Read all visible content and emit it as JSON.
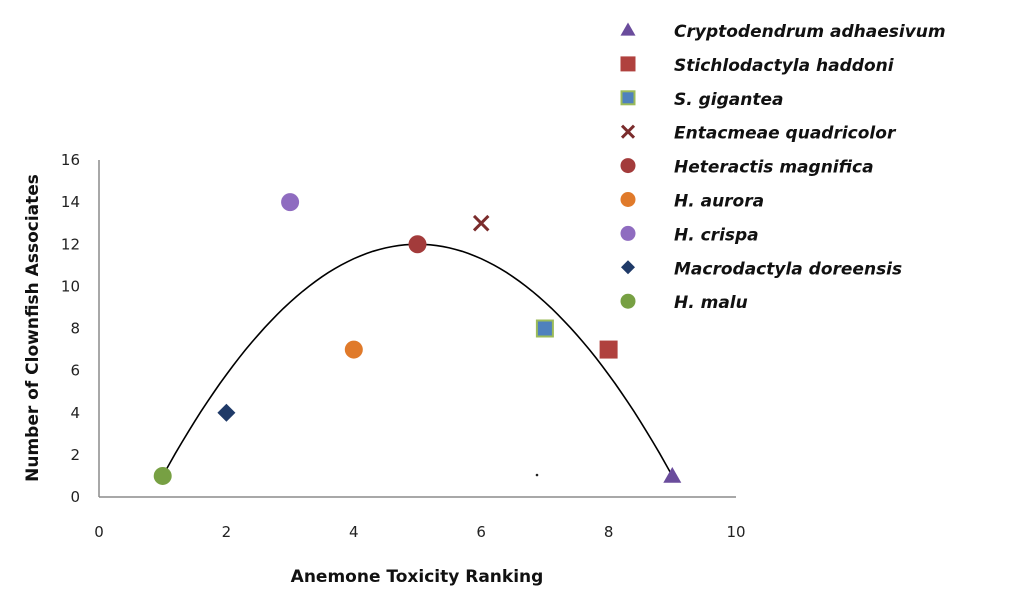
{
  "chart_data": {
    "type": "scatter",
    "title": "",
    "xlabel": "Anemone Toxicity Ranking",
    "ylabel": "Number of Clownfish Associates",
    "xlim": [
      0,
      10
    ],
    "ylim": [
      0,
      16
    ],
    "xticks": [
      "0",
      "2",
      "4",
      "6",
      "8",
      "10"
    ],
    "yticks": [
      "0",
      "2",
      "4",
      "6",
      "8",
      "10",
      "12",
      "14",
      "16"
    ],
    "grid": false,
    "legend_position": "top-right",
    "series": [
      {
        "name": "Cryptodendrum adhaesivum",
        "marker": "triangle",
        "color": "#6A4C9C",
        "x": 9,
        "y": 1
      },
      {
        "name": "Stichlodactyla haddoni",
        "marker": "square",
        "color": "#B0413E",
        "x": 8,
        "y": 7
      },
      {
        "name": "S. gigantea",
        "marker": "square-outlined",
        "color": "#4F81BD",
        "edge_color": "#9BBB59",
        "x": 7,
        "y": 8
      },
      {
        "name": "Entacmeae quadricolor",
        "marker": "x",
        "color": "#7B2C2C",
        "x": 6,
        "y": 13
      },
      {
        "name": "Heteractis magnifica",
        "marker": "circle",
        "color": "#A33B3B",
        "x": 5,
        "y": 12
      },
      {
        "name": "H. aurora",
        "marker": "circle",
        "color": "#E07A2A",
        "x": 4,
        "y": 7
      },
      {
        "name": "H. crispa",
        "marker": "circle",
        "color": "#8F6CC0",
        "x": 3,
        "y": 14
      },
      {
        "name": "Macrodactyla doreensis",
        "marker": "diamond",
        "color": "#1F3A68",
        "x": 2,
        "y": 4
      },
      {
        "name": "H. malu",
        "marker": "circle",
        "color": "#77A043",
        "x": 1,
        "y": 1
      }
    ],
    "trendline": {
      "type": "polynomial",
      "order": 2,
      "color": "#000000",
      "x_range": [
        1,
        9
      ],
      "vertex": [
        5,
        12
      ],
      "through": [
        [
          1,
          1
        ],
        [
          9,
          1
        ]
      ]
    }
  }
}
